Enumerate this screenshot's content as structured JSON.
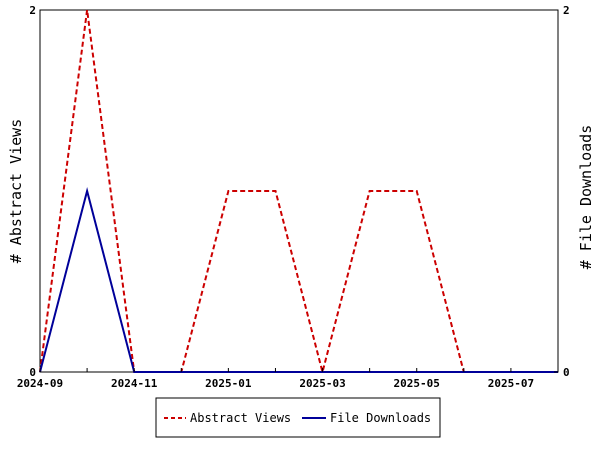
{
  "chart_data": {
    "type": "line",
    "title": "",
    "xlabel": "",
    "ylabel_left": "# Abstract Views",
    "ylabel_right": "# File Downloads",
    "x": [
      "2024-09",
      "2024-10",
      "2024-11",
      "2024-12",
      "2025-01",
      "2025-02",
      "2025-03",
      "2025-04",
      "2025-05",
      "2025-06",
      "2025-07",
      "2025-08"
    ],
    "x_tick_labels": [
      "2024-09",
      "2024-11",
      "2025-01",
      "2025-03",
      "2025-05",
      "2025-07"
    ],
    "ylim_left": [
      0,
      2
    ],
    "ylim_right": [
      0,
      2
    ],
    "y_tick_labels_left": [
      "0",
      "2"
    ],
    "y_tick_labels_right": [
      "0",
      "2"
    ],
    "grid": false,
    "legend_position": "bottom",
    "series": [
      {
        "name": "Abstract Views",
        "axis": "left",
        "color": "#cc0000",
        "dash": "dashed",
        "values": [
          0,
          2,
          0,
          0,
          1,
          1,
          0,
          1,
          1,
          0,
          0,
          0
        ]
      },
      {
        "name": "File Downloads",
        "axis": "right",
        "color": "#000099",
        "dash": "solid",
        "values": [
          0,
          1,
          0,
          0,
          0,
          0,
          0,
          0,
          0,
          0,
          0,
          0
        ]
      }
    ]
  }
}
